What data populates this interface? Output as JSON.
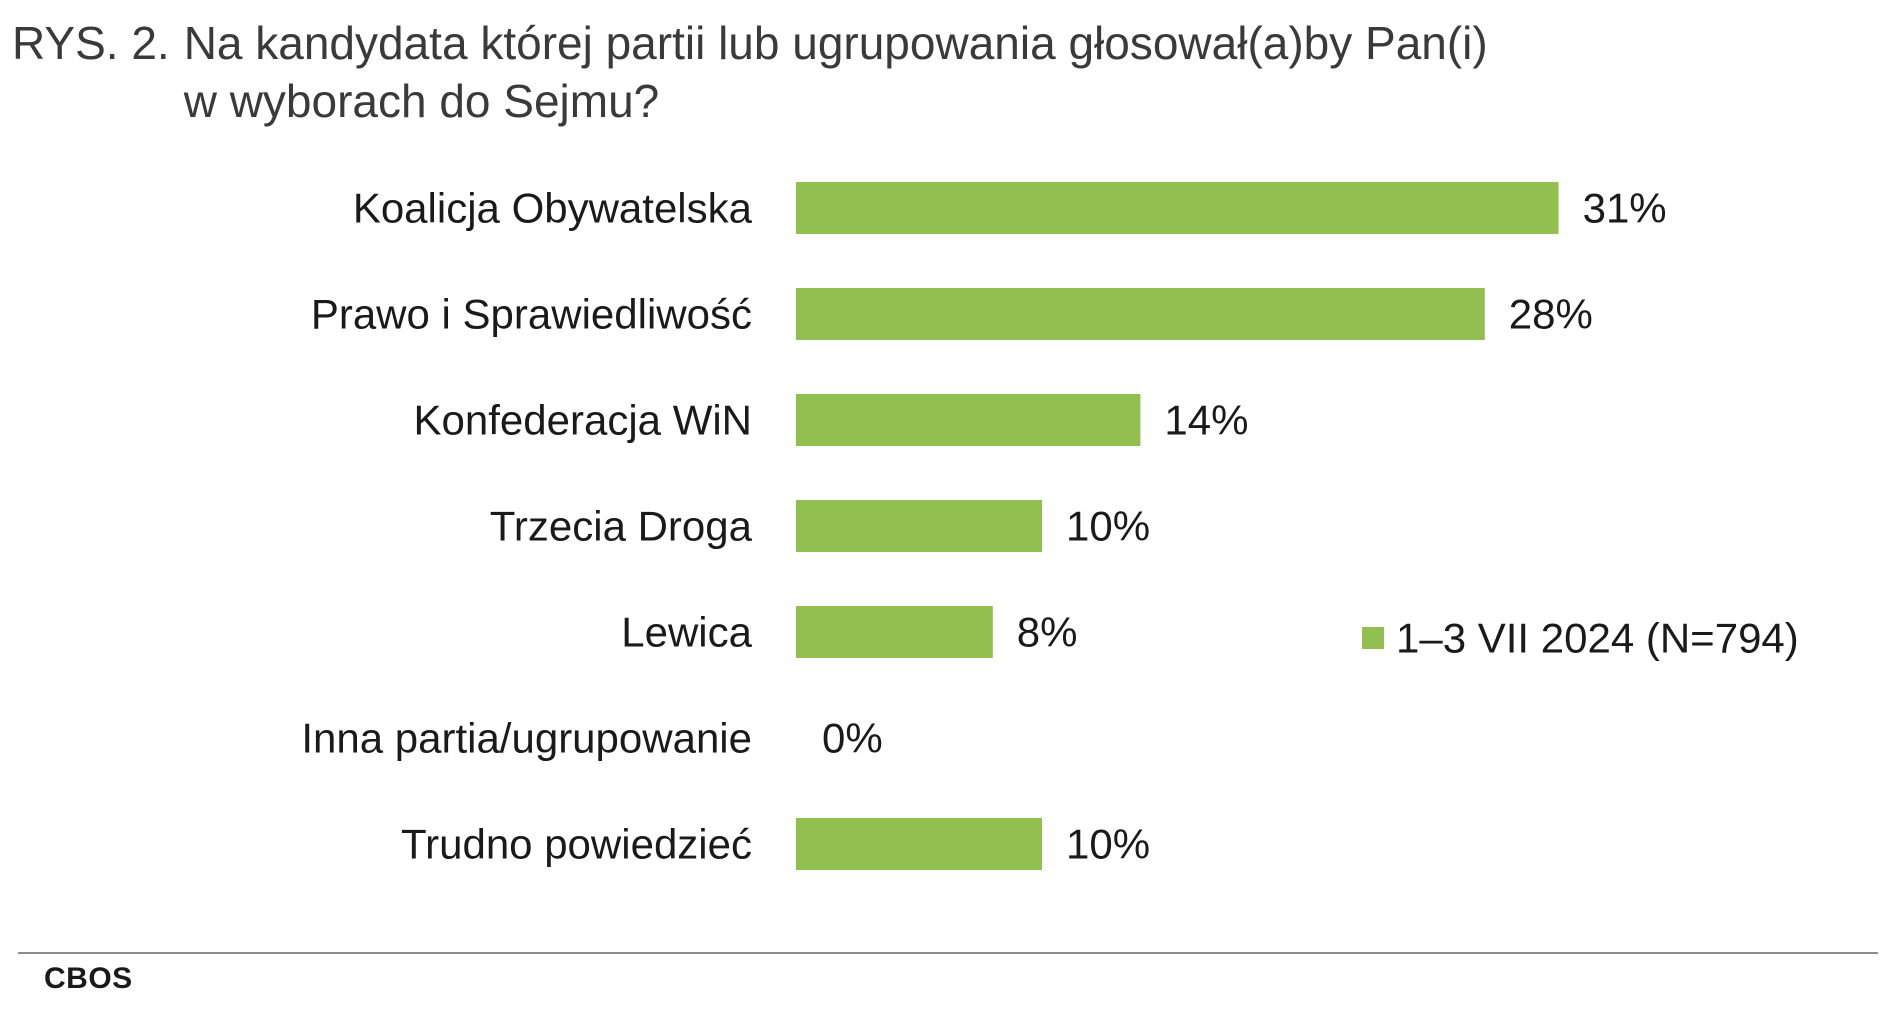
{
  "header": {
    "prefix": "RYS. 2.",
    "title": "Na kandydata której partii lub ugrupowania głosował(a)by Pan(i)\nw wyborach do Sejmu?"
  },
  "footer": {
    "source": "CBOS"
  },
  "colors": {
    "bar": "#92c050",
    "text": "#1a1a1a",
    "title": "#3a3a3a"
  },
  "chart_data": {
    "type": "bar",
    "orientation": "horizontal",
    "categories": [
      "Koalicja Obywatelska",
      "Prawo i Sprawiedliwość",
      "Konfederacja WiN",
      "Trzecia Droga",
      "Lewica",
      "Inna partia/ugrupowanie",
      "Trudno powiedzieć"
    ],
    "series": [
      {
        "name": "1–3 VII 2024 (N=794)",
        "values": [
          31,
          28,
          14,
          10,
          8,
          0,
          10
        ],
        "labels": [
          "31%",
          "28%",
          "14%",
          "10%",
          "8%",
          "0%",
          "10%"
        ]
      }
    ],
    "legend_position": "right",
    "grid": false,
    "value_axis_visible": false
  }
}
